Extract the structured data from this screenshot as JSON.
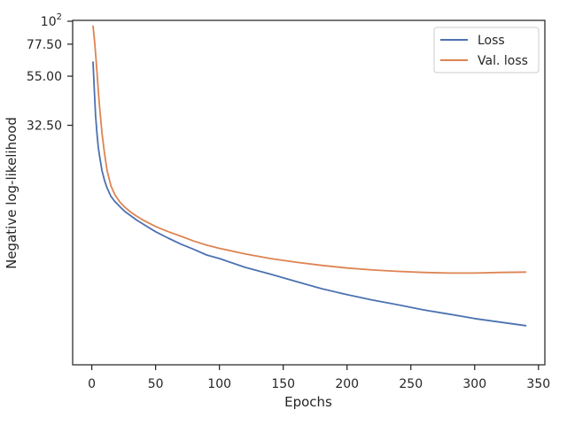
{
  "chart_data": {
    "type": "line",
    "title": "",
    "xlabel": "Epochs",
    "ylabel": "Negative log-likelihood",
    "xlim": [
      -15,
      355
    ],
    "ylim": [
      2.5,
      100
    ],
    "yscale": "log",
    "x_ticks": [
      0,
      50,
      100,
      150,
      200,
      250,
      300,
      350
    ],
    "x_tick_labels": [
      "0",
      "50",
      "100",
      "150",
      "200",
      "250",
      "300",
      "350"
    ],
    "y_ticks": [
      32.5,
      55.0,
      77.5
    ],
    "y_tick_labels": [
      "32.50",
      "55.00",
      "77.50"
    ],
    "y_top_label": {
      "base": "10",
      "exponent": "2"
    },
    "grid": false,
    "legend": {
      "placement": "top-right"
    },
    "series": [
      {
        "name": "Loss",
        "color": "#4c72b0",
        "x": [
          1,
          2,
          3,
          4,
          5,
          6,
          8,
          10,
          12,
          15,
          18,
          22,
          26,
          30,
          35,
          40,
          50,
          60,
          70,
          80,
          90,
          100,
          120,
          140,
          160,
          180,
          200,
          220,
          240,
          260,
          280,
          300,
          320,
          340
        ],
        "y": [
          64.0,
          47.0,
          36.0,
          30.0,
          26.0,
          23.5,
          20.0,
          18.0,
          16.6,
          15.2,
          14.4,
          13.6,
          12.9,
          12.4,
          11.8,
          11.3,
          10.4,
          9.7,
          9.1,
          8.6,
          8.1,
          7.8,
          7.1,
          6.6,
          6.1,
          5.65,
          5.3,
          5.0,
          4.75,
          4.5,
          4.3,
          4.1,
          3.95,
          3.8
        ]
      },
      {
        "name": "Val. loss",
        "color": "#dd8452",
        "x": [
          1,
          2,
          3,
          4,
          5,
          6,
          8,
          10,
          12,
          15,
          18,
          22,
          26,
          30,
          35,
          40,
          50,
          60,
          70,
          80,
          90,
          100,
          120,
          140,
          160,
          180,
          200,
          220,
          240,
          260,
          280,
          300,
          320,
          340
        ],
        "y": [
          94.0,
          82.0,
          70.0,
          58.0,
          48.0,
          40.0,
          30.0,
          24.0,
          20.0,
          17.0,
          15.5,
          14.3,
          13.5,
          12.9,
          12.3,
          11.8,
          11.0,
          10.4,
          9.9,
          9.4,
          9.0,
          8.7,
          8.2,
          7.8,
          7.5,
          7.25,
          7.05,
          6.9,
          6.8,
          6.72,
          6.68,
          6.68,
          6.72,
          6.75
        ]
      }
    ]
  }
}
